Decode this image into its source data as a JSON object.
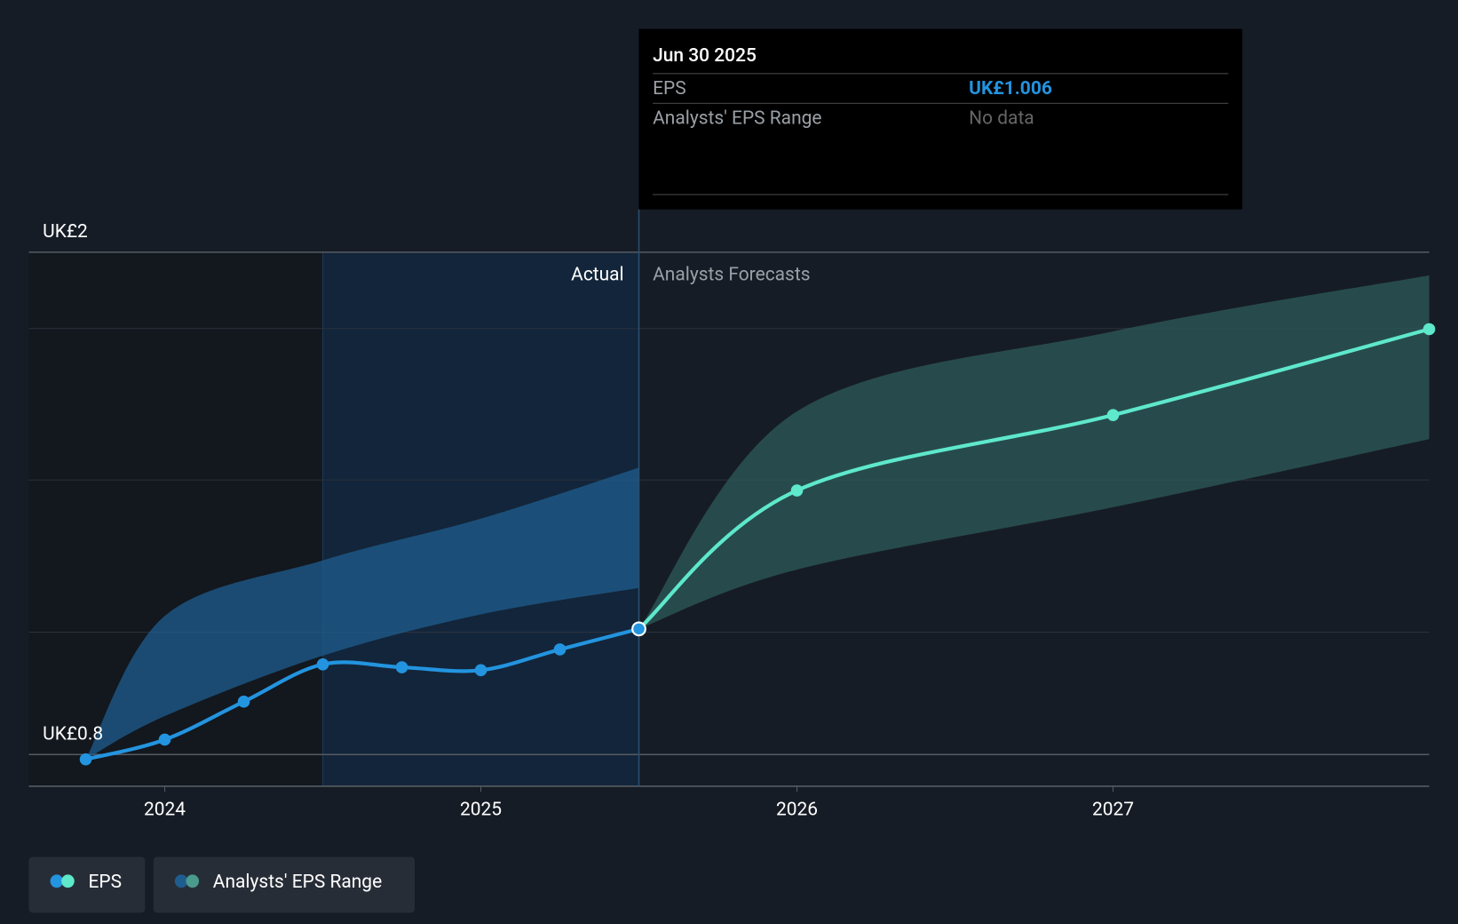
{
  "chart_data": {
    "type": "line",
    "log_scale": true,
    "xlim": [
      2023.57,
      2028
    ],
    "ylim": [
      0.755,
      2
    ],
    "xticks": [
      2024,
      2025,
      2026,
      2027
    ],
    "yticks": [
      {
        "value": 0.8,
        "label": "UK£0.8"
      },
      {
        "value": 2,
        "label": "UK£2"
      }
    ],
    "ygrid": [
      1.0,
      1.32,
      1.74
    ],
    "past_start": 2024.5,
    "forecast_start": 2025.5,
    "actual_label": "Actual",
    "forecast_label": "Analysts Forecasts",
    "series": [
      {
        "name": "EPS",
        "color": "#2394df",
        "forecast_color": "#5ee8cc",
        "x": [
          2023.75,
          2024,
          2024.25,
          2024.5,
          2024.75,
          2025,
          2025.25,
          2025.5
        ],
        "values": [
          0.793,
          0.822,
          0.881,
          0.943,
          0.938,
          0.933,
          0.969,
          1.006
        ],
        "forecast_x": [
          2025.5,
          2026,
          2027,
          2028
        ],
        "forecast_values": [
          1.006,
          1.295,
          1.486,
          1.738
        ]
      }
    ],
    "range": {
      "name": "Analysts' EPS Range",
      "color": "#1f5d8f",
      "forecast_color": "#2e5b5a",
      "x": [
        2023.75,
        2024,
        2024.5,
        2025,
        2025.5
      ],
      "upper": [
        0.793,
        1.03,
        1.14,
        1.23,
        1.35
      ],
      "lower": [
        0.793,
        0.858,
        0.958,
        1.033,
        1.084
      ],
      "forecast_x": [
        2025.5,
        2026,
        2027,
        2028
      ],
      "forecast_upper": [
        1.006,
        1.496,
        1.731,
        1.917
      ],
      "forecast_lower": [
        1.006,
        1.121,
        1.256,
        1.422
      ]
    },
    "tooltip": {
      "title": "Jun 30 2025",
      "rows": [
        {
          "label": "EPS",
          "value": "UK£1.006"
        },
        {
          "label": "Analysts' EPS Range",
          "value": "No data"
        }
      ]
    }
  }
}
